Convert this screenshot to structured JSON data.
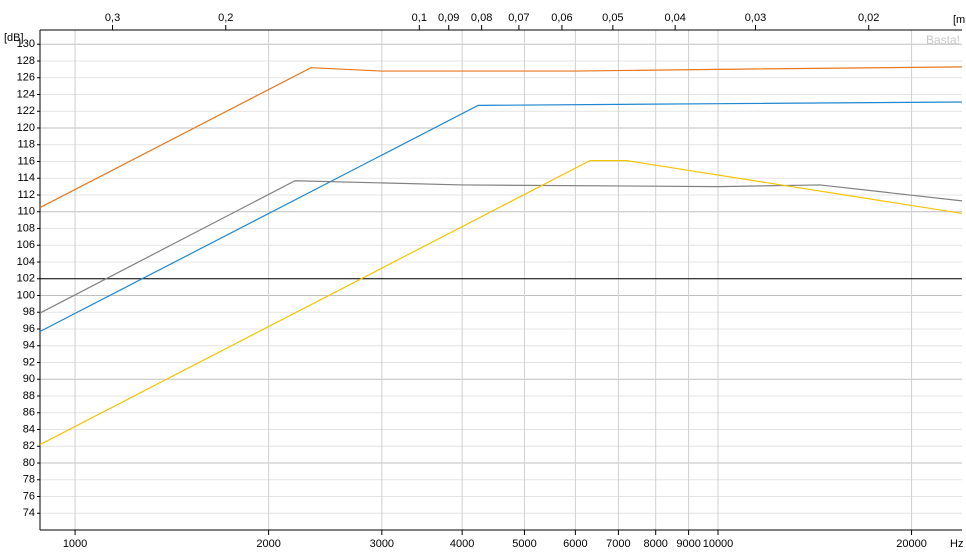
{
  "chart_data": {
    "type": "line",
    "y_label": "[dB]",
    "x_label": "Hz",
    "x2_label": "[m",
    "watermark": "Basta!",
    "x_log": true,
    "xlim": [
      882,
      23960
    ],
    "xticks": [
      1000,
      2000,
      3000,
      4000,
      5000,
      6000,
      7000,
      8000,
      9000,
      10000,
      20000
    ],
    "x2_log": true,
    "x2lim": [
      0.389,
      0.01432
    ],
    "x2ticks": [
      {
        "value": 0.3,
        "label": "0,3"
      },
      {
        "value": 0.2,
        "label": "0,2"
      },
      {
        "value": 0.1,
        "label": "0,1"
      },
      {
        "value": 0.09,
        "label": "0,09"
      },
      {
        "value": 0.08,
        "label": "0,08"
      },
      {
        "value": 0.07,
        "label": "0,07"
      },
      {
        "value": 0.06,
        "label": "0,06"
      },
      {
        "value": 0.05,
        "label": "0,05"
      },
      {
        "value": 0.04,
        "label": "0,04"
      },
      {
        "value": 0.03,
        "label": "0,03"
      },
      {
        "value": 0.02,
        "label": "0,02"
      }
    ],
    "ylim": [
      72,
      131.7
    ],
    "yticks": [
      74,
      76,
      78,
      80,
      82,
      84,
      86,
      88,
      90,
      92,
      94,
      96,
      98,
      100,
      102,
      104,
      106,
      108,
      110,
      112,
      114,
      116,
      118,
      120,
      122,
      124,
      126,
      128,
      130
    ],
    "grid": true,
    "reference_line": 102,
    "series": [
      {
        "color": "#e8771e",
        "x": [
          882,
          2328,
          3000,
          6000,
          10000,
          23960
        ],
        "values": [
          110.5,
          127.2,
          126.8,
          126.8,
          127.0,
          127.3
        ]
      },
      {
        "color": "#1f86d0",
        "x": [
          882,
          4236,
          10000,
          23960
        ],
        "values": [
          95.7,
          122.7,
          122.9,
          123.1
        ]
      },
      {
        "color": "#808080",
        "x": [
          882,
          2198,
          4000,
          10000,
          14410,
          23960
        ],
        "values": [
          97.9,
          113.7,
          113.2,
          113.0,
          113.2,
          111.3
        ]
      },
      {
        "color": "#f5c400",
        "x": [
          882,
          6322,
          7215,
          23960
        ],
        "values": [
          82.2,
          116.1,
          116.1,
          109.8
        ]
      }
    ]
  }
}
